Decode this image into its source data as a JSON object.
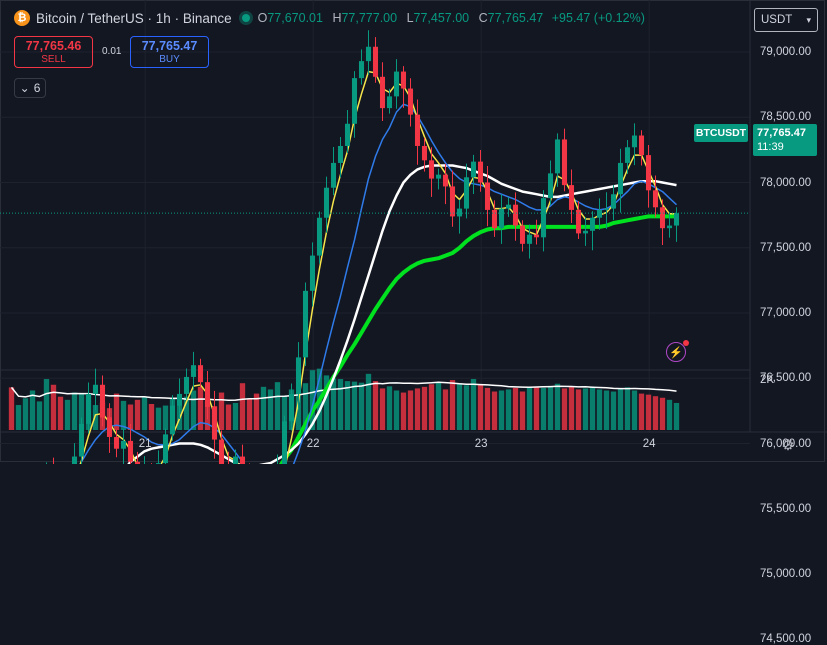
{
  "header": {
    "coin_glyph": "₿",
    "title": "Bitcoin / TetherUS · 1h · Binance",
    "open_label": "O",
    "open": "77,670.01",
    "high_label": "H",
    "high": "77,777.00",
    "low_label": "L",
    "low": "77,457.00",
    "close_label": "C",
    "close": "77,765.47",
    "change": "+95.47 (+0.12%)"
  },
  "trade": {
    "sell_price": "77,765.46",
    "sell_label": "SELL",
    "buy_price": "77,765.47",
    "buy_label": "BUY",
    "spread": "0.01"
  },
  "indicators_count": "6",
  "currency": "USDT",
  "last_price": {
    "symbol": "BTCUSDT",
    "price": "77,765.47",
    "countdown": "11:39"
  },
  "colors": {
    "up": "#089981",
    "down": "#f23645",
    "bg": "#131722",
    "sma_green": "#00e21f",
    "sma_white": "#ffffff",
    "ema_blue": "#2f7bea",
    "ema_yellow": "#f7e64b"
  },
  "icons": {
    "flash": "lightning-icon",
    "settings": "gear-icon",
    "chevron": "chevron-down-icon"
  },
  "chart_data": {
    "type": "candlestick",
    "ylim": [
      74300,
      79350
    ],
    "y_ticks": [
      "79,000.00",
      "78,500.00",
      "78,000.00",
      "77,500.00",
      "77,000.00",
      "76,500.00",
      "76,000.00",
      "75,500.00",
      "75,000.00",
      "74,500.00"
    ],
    "y_tick_values": [
      79000,
      78500,
      78000,
      77500,
      77000,
      76500,
      76000,
      75500,
      75000,
      74500
    ],
    "x_ticks": [
      "21",
      "22",
      "23",
      "24"
    ],
    "x_tick_positions": [
      19.6,
      43.6,
      67.6,
      91.6
    ],
    "bar_count": 96,
    "volume_tick": "2K",
    "closes": [
      74980,
      75090,
      75180,
      75300,
      75540,
      75810,
      75700,
      75320,
      75530,
      75900,
      76150,
      76380,
      76450,
      76200,
      76050,
      75960,
      76020,
      75860,
      75690,
      75790,
      75780,
      75850,
      76070,
      76290,
      76380,
      76510,
      76600,
      76470,
      76280,
      76030,
      75830,
      75740,
      75900,
      75720,
      75310,
      75240,
      75280,
      75400,
      75820,
      76170,
      76380,
      76660,
      77170,
      77440,
      77730,
      77960,
      78150,
      78280,
      78450,
      78800,
      78930,
      79040,
      78810,
      78570,
      78660,
      78850,
      78720,
      78520,
      78280,
      78170,
      78030,
      78060,
      77970,
      77740,
      77800,
      78040,
      78160,
      78000,
      77790,
      77650,
      77800,
      77830,
      77670,
      77530,
      77600,
      77580,
      77880,
      78070,
      78330,
      77980,
      77790,
      77610,
      77630,
      77730,
      77790,
      77800,
      77910,
      78150,
      78270,
      78360,
      78210,
      77940,
      77810,
      77650,
      77670,
      77765
    ],
    "volumes": [
      820,
      480,
      610,
      760,
      550,
      980,
      870,
      640,
      580,
      720,
      700,
      690,
      480,
      530,
      420,
      700,
      560,
      490,
      580,
      640,
      500,
      430,
      470,
      620,
      580,
      640,
      760,
      830,
      550,
      460,
      720,
      490,
      520,
      900,
      600,
      700,
      830,
      780,
      920,
      660,
      780,
      700,
      900,
      1150,
      1180,
      1050,
      990,
      980,
      940,
      930,
      910,
      1080,
      940,
      800,
      840,
      760,
      720,
      760,
      800,
      830,
      880,
      920,
      780,
      960,
      900,
      860,
      980,
      870,
      810,
      740,
      760,
      780,
      810,
      740,
      820,
      820,
      810,
      840,
      890,
      800,
      830,
      780,
      800,
      820,
      780,
      760,
      740,
      790,
      820,
      760,
      700,
      680,
      650,
      620,
      580,
      520
    ],
    "sma_green": [
      75280,
      75280,
      75280,
      75280,
      75280,
      75280,
      75280,
      75280,
      75280,
      75280,
      75290,
      75310,
      75340,
      75380,
      75410,
      75450,
      75480,
      75500,
      75520,
      75540,
      75550,
      75560,
      75560,
      75570,
      75570,
      75570,
      75570,
      75570,
      75570,
      75570,
      75570,
      75570,
      75570,
      75580,
      75600,
      75630,
      75680,
      75730,
      75800,
      75880,
      75950,
      76050,
      76150,
      76250,
      76330,
      76420,
      76510,
      76590,
      76680,
      76760,
      76850,
      76940,
      77030,
      77110,
      77190,
      77260,
      77310,
      77350,
      77380,
      77400,
      77410,
      77420,
      77440,
      77460,
      77500,
      77550,
      77590,
      77620,
      77640,
      77650,
      77650,
      77660,
      77660,
      77660,
      77660,
      77660,
      77660,
      77660,
      77660,
      77660,
      77660,
      77660,
      77660,
      77660,
      77660,
      77670,
      77690,
      77700,
      77710,
      77720,
      77730,
      77740,
      77740,
      77740,
      77740,
      77740
    ],
    "sma_white": [
      74950,
      74960,
      74970,
      74990,
      75020,
      75060,
      75100,
      75150,
      75200,
      75260,
      75330,
      75400,
      75480,
      75560,
      75640,
      75720,
      75790,
      75860,
      75900,
      75940,
      75960,
      75970,
      75980,
      75990,
      76000,
      76000,
      76000,
      75990,
      75970,
      75940,
      75910,
      75880,
      75850,
      75830,
      75830,
      75830,
      75840,
      75850,
      75880,
      75910,
      75950,
      76000,
      76070,
      76150,
      76250,
      76370,
      76500,
      76640,
      76790,
      76950,
      77120,
      77290,
      77460,
      77630,
      77780,
      77900,
      78000,
      78060,
      78100,
      78120,
      78130,
      78130,
      78130,
      78130,
      78120,
      78110,
      78090,
      78070,
      78050,
      78020,
      77990,
      77970,
      77950,
      77930,
      77920,
      77910,
      77900,
      77890,
      77890,
      77900,
      77910,
      77920,
      77930,
      77940,
      77950,
      77960,
      77970,
      77980,
      77990,
      78000,
      78010,
      78010,
      78010,
      78000,
      77990,
      77980
    ],
    "ema_blue": [
      74900,
      74950,
      75030,
      75110,
      75200,
      75320,
      75440,
      75560,
      75660,
      75770,
      75860,
      75950,
      76030,
      76090,
      76130,
      76140,
      76130,
      76110,
      76080,
      76050,
      76010,
      75990,
      75990,
      76000,
      76030,
      76080,
      76130,
      76160,
      76150,
      76120,
      76070,
      76000,
      75930,
      75860,
      75790,
      75700,
      75630,
      75600,
      75620,
      75690,
      75800,
      75940,
      76100,
      76290,
      76500,
      76720,
      76930,
      77130,
      77350,
      77560,
      77800,
      78030,
      78200,
      78330,
      78420,
      78540,
      78600,
      78580,
      78510,
      78420,
      78320,
      78230,
      78150,
      78080,
      78030,
      78000,
      77990,
      77980,
      77960,
      77930,
      77910,
      77890,
      77870,
      77840,
      77810,
      77790,
      77790,
      77820,
      77870,
      77890,
      77880,
      77850,
      77820,
      77800,
      77790,
      77800,
      77830,
      77880,
      77930,
      77990,
      78010,
      77990,
      77960,
      77930,
      77880,
      77830
    ],
    "ema_yellow": [
      74980,
      75040,
      75130,
      75230,
      75380,
      75570,
      75690,
      75640,
      75600,
      75700,
      75870,
      76060,
      76220,
      76230,
      76160,
      76070,
      76030,
      75950,
      75830,
      75810,
      75800,
      75810,
      75900,
      76060,
      76190,
      76320,
      76440,
      76450,
      76380,
      76220,
      76040,
      75900,
      75870,
      75800,
      75570,
      75400,
      75350,
      75360,
      75540,
      75800,
      76040,
      76320,
      76690,
      77030,
      77340,
      77620,
      77860,
      78060,
      78240,
      78490,
      78680,
      78850,
      78840,
      78720,
      78690,
      78760,
      78740,
      78650,
      78490,
      78350,
      78220,
      78150,
      78070,
      77920,
      77870,
      77940,
      78040,
      78030,
      77930,
      77800,
      77800,
      77810,
      77750,
      77650,
      77620,
      77600,
      77720,
      77860,
      78050,
      78020,
      77920,
      77790,
      77720,
      77720,
      77750,
      77770,
      77830,
      77970,
      78100,
      78210,
      78210,
      78090,
      77970,
      77830,
      77760,
      77760
    ]
  }
}
